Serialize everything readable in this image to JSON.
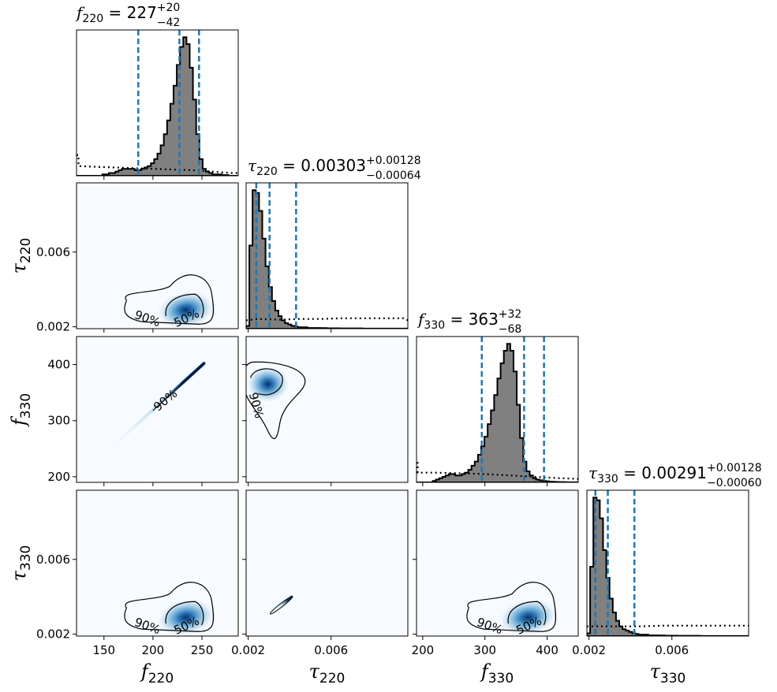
{
  "chart_data": {
    "type": "corner",
    "parameters": [
      {
        "key": "f220",
        "symbol": "f",
        "subscript": "220",
        "range": [
          122,
          287
        ],
        "ticks": [
          150,
          200,
          250
        ],
        "tick_labels": [
          "150",
          "200",
          "250"
        ],
        "title": {
          "value": "227",
          "plus": "+20",
          "minus": "−42"
        },
        "median": 227,
        "lower": 185,
        "upper": 247
      },
      {
        "key": "tau220",
        "symbol": "τ",
        "subscript": "220",
        "range": [
          0.0019,
          0.0097
        ],
        "ticks": [
          0.002,
          0.006
        ],
        "tick_labels": [
          "0.002",
          "0.006"
        ],
        "title": {
          "value": "0.00303",
          "plus": "+0.00128",
          "minus": "−0.00064"
        },
        "median": 0.00303,
        "lower": 0.00239,
        "upper": 0.00431
      },
      {
        "key": "f330",
        "symbol": "f",
        "subscript": "330",
        "range": [
          190,
          450
        ],
        "ticks": [
          200,
          300,
          400
        ],
        "tick_labels": [
          "200",
          "300",
          "400"
        ],
        "title": {
          "value": "363",
          "plus": "+32",
          "minus": "−68"
        },
        "median": 363,
        "lower": 295,
        "upper": 395
      },
      {
        "key": "tau330",
        "symbol": "τ",
        "subscript": "330",
        "range": [
          0.0019,
          0.0097
        ],
        "ticks": [
          0.002,
          0.006
        ],
        "tick_labels": [
          "0.002",
          "0.006"
        ],
        "title": {
          "value": "0.00291",
          "plus": "+0.00128",
          "minus": "−0.00060"
        },
        "median": 0.00291,
        "lower": 0.00231,
        "upper": 0.00419
      }
    ],
    "histograms": [
      {
        "param": "f220",
        "bin_start": 122,
        "bin_width": 3.3,
        "counts": [
          0,
          0,
          0,
          0,
          0,
          0,
          0,
          0,
          0.01,
          0.01,
          0.02,
          0.02,
          0.03,
          0.04,
          0.05,
          0.05,
          0.05,
          0.05,
          0.04,
          0.04,
          0.05,
          0.06,
          0.07,
          0.09,
          0.12,
          0.16,
          0.22,
          0.3,
          0.4,
          0.52,
          0.65,
          0.8,
          0.93,
          1.0,
          0.95,
          0.78,
          0.55,
          0.3,
          0.12,
          0.05,
          0.03,
          0.02,
          0.01,
          0.01,
          0.01,
          0.005,
          0.005,
          0,
          0,
          0
        ]
      },
      {
        "param": "tau220",
        "bin_start": 0.0019,
        "bin_width": 0.000156,
        "counts": [
          0.02,
          0.6,
          1.0,
          0.98,
          0.85,
          0.65,
          0.45,
          0.3,
          0.2,
          0.13,
          0.09,
          0.06,
          0.04,
          0.03,
          0.02,
          0.015,
          0.01,
          0.01,
          0.01,
          0.005,
          0.005,
          0.005,
          0.005,
          0.004,
          0.004,
          0.003,
          0.003,
          0.003,
          0.003,
          0.002,
          0.002,
          0.002,
          0.002,
          0.002,
          0.002,
          0.002,
          0.001,
          0.001,
          0.001,
          0.001,
          0.001,
          0.001,
          0.001,
          0.001,
          0.001,
          0.001,
          0.001,
          0.001,
          0.001,
          0.001
        ]
      },
      {
        "param": "f330",
        "bin_start": 190,
        "bin_width": 5.2,
        "counts": [
          0,
          0,
          0,
          0,
          0,
          0.01,
          0.02,
          0.03,
          0.04,
          0.05,
          0.06,
          0.06,
          0.05,
          0.05,
          0.06,
          0.07,
          0.09,
          0.12,
          0.15,
          0.2,
          0.26,
          0.33,
          0.42,
          0.52,
          0.63,
          0.75,
          0.86,
          0.95,
          1.0,
          0.95,
          0.8,
          0.56,
          0.32,
          0.15,
          0.08,
          0.05,
          0.03,
          0.02,
          0.015,
          0.01,
          0.008,
          0.005,
          0.004,
          0.003,
          0.002,
          0.002,
          0.001,
          0.001,
          0.001,
          0.001
        ]
      },
      {
        "param": "tau330",
        "bin_start": 0.0019,
        "bin_width": 0.000156,
        "counts": [
          0.02,
          0.5,
          1.0,
          0.98,
          0.85,
          0.62,
          0.42,
          0.27,
          0.17,
          0.11,
          0.07,
          0.05,
          0.04,
          0.03,
          0.02,
          0.015,
          0.01,
          0.01,
          0.01,
          0.005,
          0.005,
          0.005,
          0.004,
          0.004,
          0.003,
          0.003,
          0.003,
          0.003,
          0.002,
          0.002,
          0.002,
          0.002,
          0.002,
          0.002,
          0.002,
          0.001,
          0.001,
          0.001,
          0.001,
          0.001,
          0.001,
          0.001,
          0.001,
          0.001,
          0.001,
          0.001,
          0.001,
          0.001,
          0.001,
          0.001
        ]
      }
    ],
    "priors": [
      {
        "param": "f220",
        "x": [
          122,
          124,
          124,
          140,
          160,
          180,
          200,
          220,
          240,
          260,
          280,
          287
        ],
        "y": [
          0.15,
          0.15,
          0.07,
          0.065,
          0.06,
          0.055,
          0.05,
          0.045,
          0.04,
          0.03,
          0.02,
          0.02
        ]
      },
      {
        "param": "tau220",
        "x": [
          0.0019,
          0.0025,
          0.0035,
          0.0045,
          0.0055,
          0.0065,
          0.0075,
          0.0085,
          0.0095,
          0.0097
        ],
        "y": [
          0.06,
          0.07,
          0.065,
          0.07,
          0.07,
          0.075,
          0.075,
          0.075,
          0.075,
          0.06
        ]
      },
      {
        "param": "f330",
        "x": [
          190,
          192,
          192,
          220,
          260,
          300,
          340,
          380,
          420,
          450
        ],
        "y": [
          0.14,
          0.14,
          0.07,
          0.07,
          0.065,
          0.06,
          0.05,
          0.04,
          0.03,
          0.025
        ]
      },
      {
        "param": "tau330",
        "x": [
          0.0019,
          0.0027,
          0.0035,
          0.0045,
          0.0055,
          0.0065,
          0.0075,
          0.0085,
          0.0095,
          0.0097
        ],
        "y": [
          0.07,
          0.07,
          0.07,
          0.07,
          0.075,
          0.075,
          0.075,
          0.075,
          0.075,
          0.075
        ]
      }
    ],
    "contour_labels": [
      "90%",
      "50%"
    ],
    "colors": {
      "hist_fill": "#808080",
      "hist_edge": "#000000",
      "quantile_line": "#1f77b4",
      "density_cmap": [
        "#f7fbff",
        "#08306b"
      ],
      "contour": "#000000"
    }
  }
}
